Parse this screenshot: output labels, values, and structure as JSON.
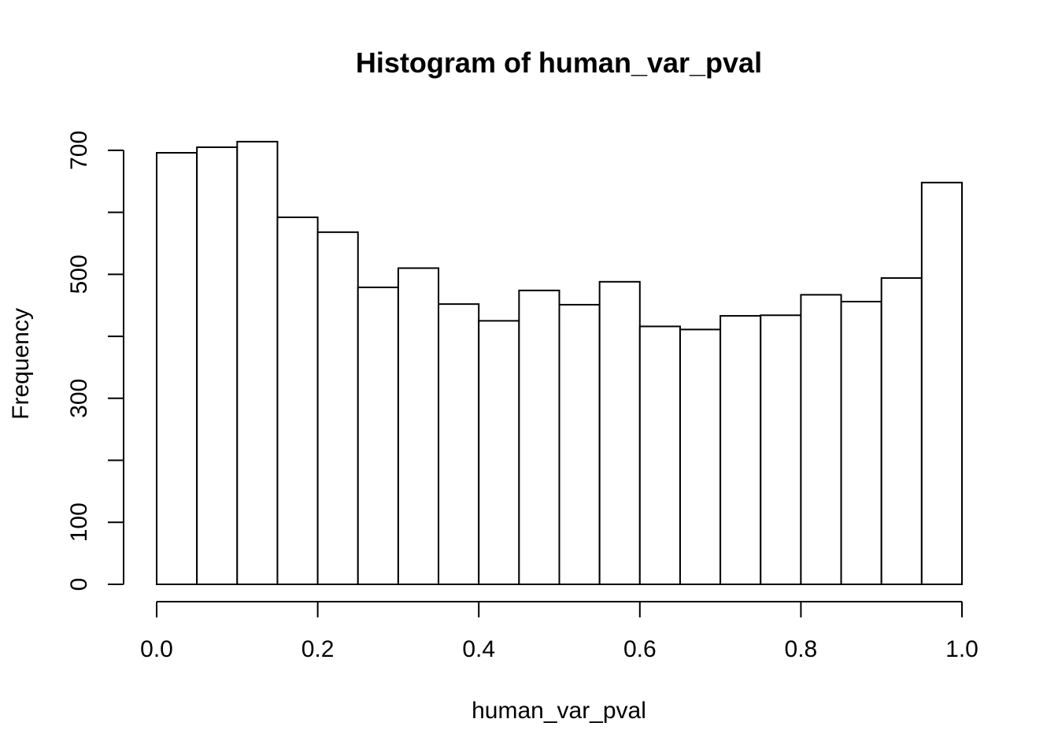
{
  "chart_data": {
    "type": "bar",
    "title": "Histogram of human_var_pval",
    "xlabel": "human_var_pval",
    "ylabel": "Frequency",
    "bin_edges": [
      0.0,
      0.05,
      0.1,
      0.15,
      0.2,
      0.25,
      0.3,
      0.35,
      0.4,
      0.45,
      0.5,
      0.55,
      0.6,
      0.65,
      0.7,
      0.75,
      0.8,
      0.85,
      0.9,
      0.95,
      1.0
    ],
    "values": [
      696,
      705,
      714,
      592,
      568,
      479,
      510,
      452,
      425,
      474,
      451,
      488,
      416,
      411,
      433,
      434,
      467,
      456,
      494,
      648
    ],
    "xlim": [
      0.0,
      1.0
    ],
    "ylim": [
      0,
      714
    ],
    "x_ticks": [
      0.0,
      0.2,
      0.4,
      0.6,
      0.8,
      1.0
    ],
    "x_tick_labels": [
      "0.0",
      "0.2",
      "0.4",
      "0.6",
      "0.8",
      "1.0"
    ],
    "y_ticks": [
      0,
      100,
      200,
      300,
      400,
      500,
      600,
      700
    ],
    "y_tick_labels": [
      "0",
      "100",
      "",
      "300",
      "",
      "500",
      "",
      "700"
    ],
    "grid": false,
    "legend": "none"
  }
}
